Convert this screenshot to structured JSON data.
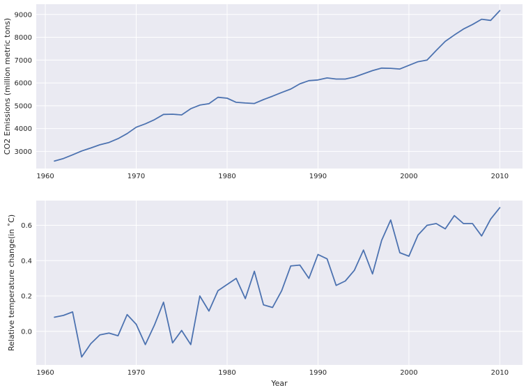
{
  "chart_data": [
    {
      "type": "line",
      "ylabel": "CO2 Emissions (million metric tons)",
      "xlabel": "",
      "xlim": [
        1959,
        2012.5
      ],
      "ylim": [
        2250,
        9450
      ],
      "xticks": [
        1960,
        1970,
        1980,
        1990,
        2000,
        2010
      ],
      "yticks": [
        3000,
        4000,
        5000,
        6000,
        7000,
        8000,
        9000
      ],
      "grid": true,
      "series": [
        {
          "color": "#4c72b0",
          "x": [
            1961,
            1962,
            1963,
            1964,
            1965,
            1966,
            1967,
            1968,
            1969,
            1970,
            1971,
            1972,
            1973,
            1974,
            1975,
            1976,
            1977,
            1978,
            1979,
            1980,
            1981,
            1982,
            1983,
            1984,
            1985,
            1986,
            1987,
            1988,
            1989,
            1990,
            1991,
            1992,
            1993,
            1994,
            1995,
            1996,
            1997,
            1998,
            1999,
            2000,
            2001,
            2002,
            2003,
            2004,
            2005,
            2006,
            2007,
            2008,
            2009,
            2010
          ],
          "y": [
            2580,
            2690,
            2850,
            3020,
            3150,
            3290,
            3390,
            3560,
            3780,
            4060,
            4210,
            4390,
            4620,
            4630,
            4600,
            4870,
            5030,
            5090,
            5370,
            5330,
            5150,
            5120,
            5100,
            5270,
            5420,
            5580,
            5730,
            5960,
            6100,
            6130,
            6220,
            6170,
            6170,
            6260,
            6400,
            6540,
            6650,
            6640,
            6610,
            6770,
            6930,
            7000,
            7420,
            7820,
            8100,
            8360,
            8560,
            8790,
            8740,
            9170
          ]
        }
      ]
    },
    {
      "type": "line",
      "ylabel": "Relative temperature change(in ˚C)",
      "xlabel": "Year",
      "xlim": [
        1959,
        2012.5
      ],
      "ylim": [
        -0.19,
        0.74
      ],
      "xticks": [
        1960,
        1970,
        1980,
        1990,
        2000,
        2010
      ],
      "yticks": [
        "0.0",
        "0.2",
        "0.4",
        "0.6"
      ],
      "grid": true,
      "series": [
        {
          "color": "#4c72b0",
          "x": [
            1961,
            1962,
            1963,
            1964,
            1965,
            1966,
            1967,
            1968,
            1969,
            1970,
            1971,
            1972,
            1973,
            1974,
            1975,
            1976,
            1977,
            1978,
            1979,
            1980,
            1981,
            1982,
            1983,
            1984,
            1985,
            1986,
            1987,
            1988,
            1989,
            1990,
            1991,
            1992,
            1993,
            1994,
            1995,
            1996,
            1997,
            1998,
            1999,
            2000,
            2001,
            2002,
            2003,
            2004,
            2005,
            2006,
            2007,
            2008,
            2009,
            2010
          ],
          "y": [
            0.08,
            0.09,
            0.11,
            -0.145,
            -0.07,
            -0.02,
            -0.01,
            -0.025,
            0.095,
            0.04,
            -0.075,
            0.035,
            0.165,
            -0.065,
            0.005,
            -0.075,
            0.2,
            0.115,
            0.23,
            0.265,
            0.3,
            0.185,
            0.34,
            0.15,
            0.135,
            0.23,
            0.37,
            0.375,
            0.3,
            0.435,
            0.41,
            0.26,
            0.285,
            0.345,
            0.46,
            0.325,
            0.515,
            0.63,
            0.445,
            0.425,
            0.545,
            0.6,
            0.61,
            0.58,
            0.655,
            0.61,
            0.61,
            0.54,
            0.635,
            0.7
          ]
        }
      ]
    }
  ]
}
